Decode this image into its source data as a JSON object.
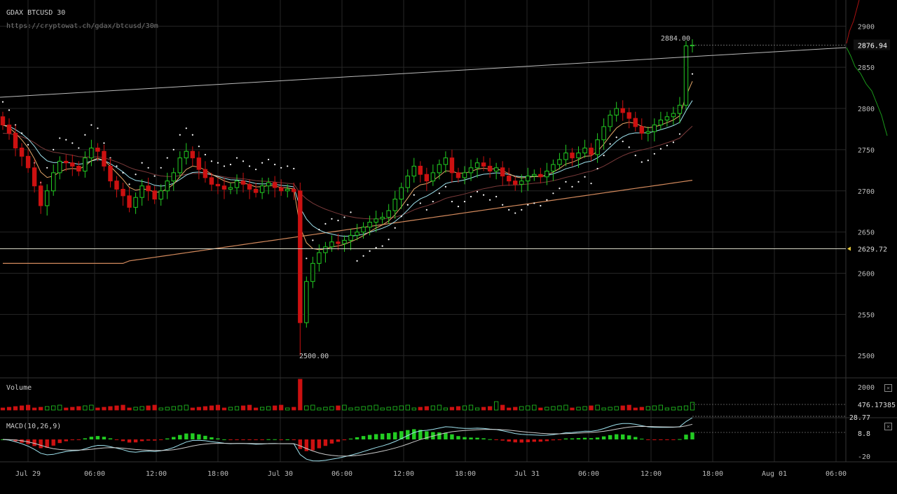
{
  "header": {
    "title": "GDAX BTCUSD 30",
    "url": "https://cryptowat.ch/gdax/btcusd/30m"
  },
  "price_axis": {
    "ticks": [
      2900,
      2850,
      2800,
      2750,
      2700,
      2650,
      2600,
      2550,
      2500
    ],
    "last_price": "2876.94",
    "hline_price": "2629.72",
    "high_label": "2884.00",
    "low_label": "2500.00"
  },
  "time_axis": {
    "labels": [
      "Jul 29",
      "06:00",
      "12:00",
      "18:00",
      "Jul 30",
      "06:00",
      "12:00",
      "18:00",
      "Jul 31",
      "06:00",
      "12:00",
      "18:00",
      "Aug 01",
      "06:00"
    ]
  },
  "volume_panel": {
    "label": "Volume",
    "tick": "2000",
    "last": "476.17385",
    "close_icon": "close-icon"
  },
  "macd_panel": {
    "label": "MACD(10,26,9)",
    "ticks": [
      "28.77",
      "8.8",
      "-20"
    ],
    "close_icon": "close-icon"
  },
  "colors": {
    "up": "#22cc22",
    "down": "#cc1111",
    "grid": "#262626",
    "ema_fast": "#e7a86a",
    "ema_mid": "#9fe3ef",
    "ema_slow_brown": "#7a3a3a",
    "sma_long": "#d2895c",
    "trendline": "#bbbbbb",
    "hline": "#d8d8c8",
    "sar": "#ffffff"
  },
  "chart_data": {
    "type": "candlestick",
    "title": "GDAX BTCUSD 30",
    "ylim": [
      2490,
      2930
    ],
    "x_labels": [
      "Jul 29",
      "06:00",
      "12:00",
      "18:00",
      "Jul 30",
      "06:00",
      "12:00",
      "18:00",
      "Jul 31",
      "06:00",
      "12:00",
      "18:00",
      "Aug 01",
      "06:00"
    ],
    "closes": [
      2780,
      2770,
      2752,
      2742,
      2728,
      2706,
      2682,
      2700,
      2722,
      2736,
      2734,
      2730,
      2724,
      2740,
      2752,
      2748,
      2730,
      2712,
      2702,
      2694,
      2680,
      2692,
      2706,
      2700,
      2690,
      2700,
      2712,
      2722,
      2740,
      2748,
      2740,
      2726,
      2716,
      2708,
      2706,
      2702,
      2704,
      2712,
      2708,
      2702,
      2698,
      2706,
      2710,
      2704,
      2700,
      2702,
      2699,
      2540,
      2590,
      2612,
      2625,
      2632,
      2638,
      2636,
      2640,
      2646,
      2650,
      2656,
      2662,
      2666,
      2668,
      2676,
      2690,
      2704,
      2718,
      2730,
      2720,
      2712,
      2722,
      2732,
      2740,
      2722,
      2716,
      2722,
      2728,
      2734,
      2730,
      2724,
      2728,
      2718,
      2712,
      2708,
      2712,
      2718,
      2720,
      2717,
      2724,
      2732,
      2738,
      2746,
      2740,
      2746,
      2752,
      2744,
      2762,
      2778,
      2792,
      2800,
      2795,
      2788,
      2778,
      2770,
      2772,
      2780,
      2786,
      2790,
      2794,
      2804,
      2876,
      2876.94
    ],
    "opens": [
      2790,
      2780,
      2770,
      2752,
      2742,
      2728,
      2706,
      2682,
      2700,
      2722,
      2736,
      2734,
      2730,
      2724,
      2740,
      2752,
      2748,
      2730,
      2712,
      2702,
      2694,
      2680,
      2692,
      2706,
      2700,
      2690,
      2700,
      2712,
      2722,
      2740,
      2748,
      2740,
      2726,
      2716,
      2708,
      2706,
      2702,
      2704,
      2712,
      2708,
      2702,
      2698,
      2706,
      2710,
      2704,
      2700,
      2702,
      2700,
      2540,
      2590,
      2612,
      2625,
      2632,
      2638,
      2636,
      2640,
      2646,
      2650,
      2656,
      2662,
      2666,
      2668,
      2676,
      2690,
      2704,
      2718,
      2730,
      2720,
      2712,
      2722,
      2732,
      2740,
      2722,
      2716,
      2722,
      2728,
      2734,
      2730,
      2724,
      2728,
      2718,
      2712,
      2708,
      2712,
      2718,
      2720,
      2717,
      2724,
      2732,
      2738,
      2746,
      2740,
      2746,
      2752,
      2744,
      2762,
      2778,
      2792,
      2800,
      2795,
      2788,
      2778,
      2770,
      2772,
      2780,
      2786,
      2790,
      2794,
      2804,
      2876
    ],
    "volume_max": 2000,
    "volume_last": 476.17385,
    "macd_params": [
      10,
      26,
      9
    ],
    "macd_ticks": [
      28.77,
      8.8,
      -20
    ],
    "price_lines": [
      2876.94,
      2629.72
    ],
    "high": 2884.0,
    "low": 2500.0
  }
}
